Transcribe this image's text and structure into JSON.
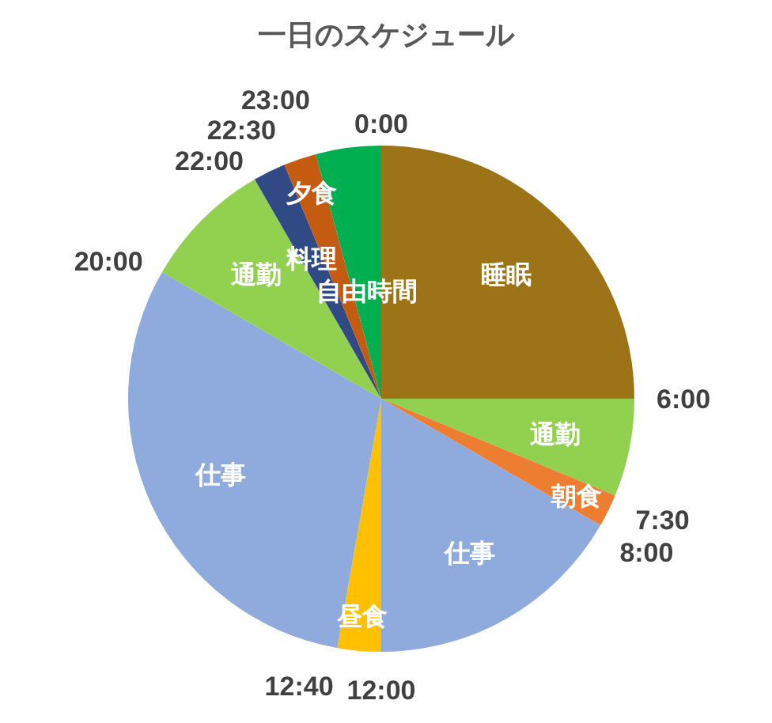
{
  "chart_data": {
    "type": "pie",
    "title": "一日のスケジュール",
    "categories": [
      "睡眠",
      "通勤",
      "朝食",
      "仕事",
      "昼食",
      "仕事",
      "通勤",
      "料理",
      "夕食",
      "自由時間"
    ],
    "values": [
      25,
      6.25,
      2.083,
      16.667,
      2.778,
      30.556,
      8.333,
      2.083,
      2.083,
      4.167
    ],
    "colors": [
      "#9c7417",
      "#92d050",
      "#ed7d31",
      "#8faadc",
      "#ffc000",
      "#8faadc",
      "#92d050",
      "#2f4a84",
      "#c55a11",
      "#00b050"
    ],
    "annotations": [
      "0:00",
      "6:00",
      "7:30",
      "8:00",
      "12:00",
      "12:40",
      "20:00",
      "22:00",
      "22:30",
      "23:00"
    ]
  }
}
